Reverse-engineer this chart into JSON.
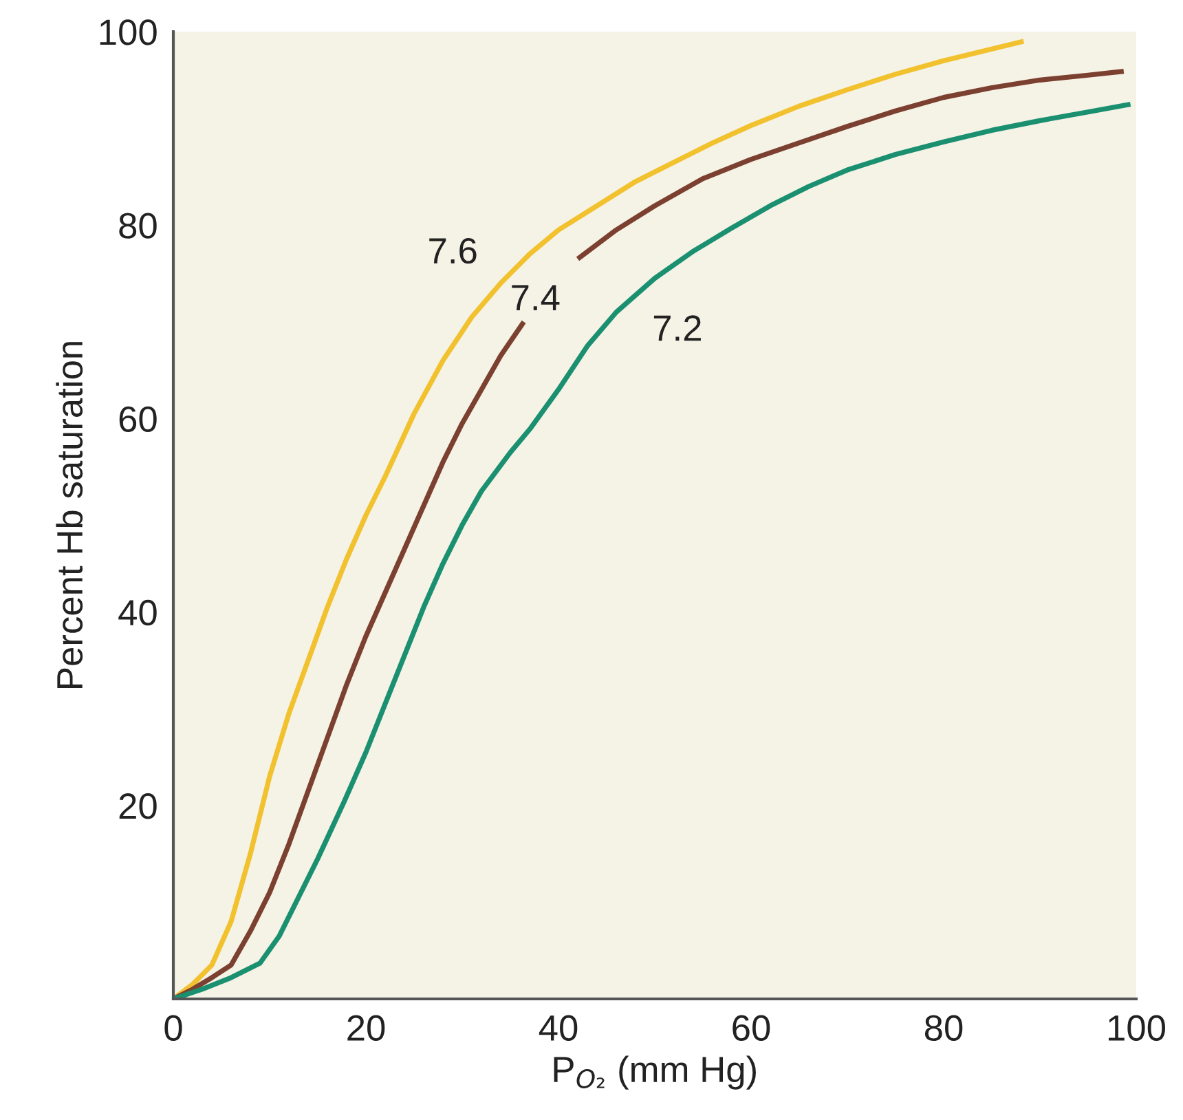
{
  "chart_data": {
    "type": "line",
    "xlabel": "P$_{O₂}$ (mm Hg)",
    "ylabel": "Percent Hb saturation",
    "xlim": [
      0,
      100
    ],
    "ylim": [
      0,
      100
    ],
    "xticks": [
      0,
      20,
      40,
      60,
      80,
      100
    ],
    "yticks": [
      20,
      40,
      60,
      80,
      100
    ],
    "grid": false,
    "legend": false,
    "marker": "none",
    "line_style": "solid",
    "series": [
      {
        "name": "7.6",
        "color": "#f2c12e",
        "x": [
          0,
          2,
          4,
          6,
          8,
          9,
          10,
          12,
          14,
          16,
          18,
          20,
          22,
          25,
          28,
          31,
          34,
          37,
          40,
          44,
          48,
          52,
          56,
          60,
          65,
          70,
          75,
          80,
          85,
          88.3
        ],
        "values": [
          0,
          1.5,
          3.5,
          8,
          15,
          19,
          23,
          29.5,
          35,
          40.5,
          45.5,
          50,
          54,
          60.5,
          66,
          70.5,
          74,
          77,
          79.5,
          82,
          84.5,
          86.5,
          88.5,
          90.3,
          92.3,
          94,
          95.6,
          97,
          98.2,
          99
        ]
      },
      {
        "name": "7.4",
        "color": "#7b4030",
        "x": [
          0,
          2,
          4,
          6,
          8,
          10,
          12,
          14,
          16,
          18,
          20,
          22,
          24,
          26,
          28,
          30,
          32,
          34,
          36.4,
          39,
          42,
          46,
          50,
          55,
          60,
          65,
          70,
          75,
          80,
          85,
          90,
          95,
          98.7
        ],
        "values": [
          0,
          1,
          2.2,
          3.5,
          7,
          11,
          16,
          21.5,
          27,
          32.5,
          37.5,
          42,
          46.5,
          51,
          55.5,
          59.5,
          63,
          66.5,
          70,
          null,
          76.5,
          79.5,
          82,
          84.8,
          86.8,
          88.5,
          90.2,
          91.8,
          93.2,
          94.2,
          95,
          95.5,
          95.9
        ]
      },
      {
        "name": "7.2",
        "color": "#1a9070",
        "x": [
          0,
          3,
          6,
          9,
          11,
          13,
          15,
          17.7,
          20,
          22,
          24,
          26,
          28,
          30,
          32,
          35,
          37.1,
          40,
          43,
          46,
          50,
          54,
          58,
          62,
          66,
          70,
          75,
          80,
          85,
          90,
          95,
          99.4
        ],
        "values": [
          0,
          1,
          2.2,
          3.7,
          6.5,
          10.5,
          14.5,
          20.3,
          25.5,
          30.5,
          35.5,
          40.5,
          45,
          49,
          52.5,
          56.5,
          59,
          63,
          67.5,
          71,
          74.5,
          77.3,
          79.7,
          82,
          84,
          85.7,
          87.3,
          88.6,
          89.8,
          90.8,
          91.7,
          92.5
        ]
      }
    ]
  }
}
